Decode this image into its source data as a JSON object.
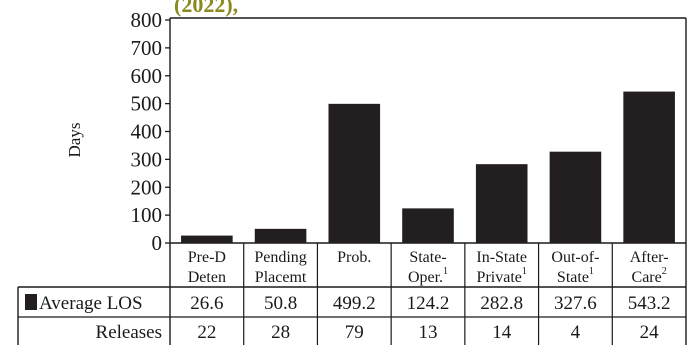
{
  "chart_data": {
    "type": "bar",
    "title_fragment": "(2022),",
    "ylabel": "Days",
    "ylim": [
      0,
      800
    ],
    "yticks": [
      0,
      100,
      200,
      300,
      400,
      500,
      600,
      700,
      800
    ],
    "categories": [
      {
        "lines": [
          "Pre-D",
          "Deten"
        ],
        "sup": ""
      },
      {
        "lines": [
          "Pending",
          "Placemt"
        ],
        "sup": ""
      },
      {
        "lines": [
          "Prob."
        ],
        "sup": ""
      },
      {
        "lines": [
          "State-",
          "Oper."
        ],
        "sup": "1"
      },
      {
        "lines": [
          "In-State",
          "Private"
        ],
        "sup": "1"
      },
      {
        "lines": [
          "Out-of-",
          "State"
        ],
        "sup": "1"
      },
      {
        "lines": [
          "After-",
          "Care"
        ],
        "sup": "2"
      }
    ],
    "series": [
      {
        "name": "Average LOS",
        "values": [
          26.6,
          50.8,
          499.2,
          124.2,
          282.8,
          327.6,
          543.2
        ],
        "color": "#231f20"
      }
    ],
    "table": {
      "rows": [
        {
          "label": "Average LOS",
          "values": [
            "26.6",
            "50.8",
            "499.2",
            "124.2",
            "282.8",
            "327.6",
            "543.2"
          ]
        },
        {
          "label": "Releases",
          "values": [
            "22",
            "28",
            "79",
            "13",
            "14",
            "4",
            "24"
          ]
        }
      ]
    },
    "colors": {
      "bar": "#231f20",
      "title": "#8a8a1e",
      "axis": "#1a1a1a"
    }
  }
}
